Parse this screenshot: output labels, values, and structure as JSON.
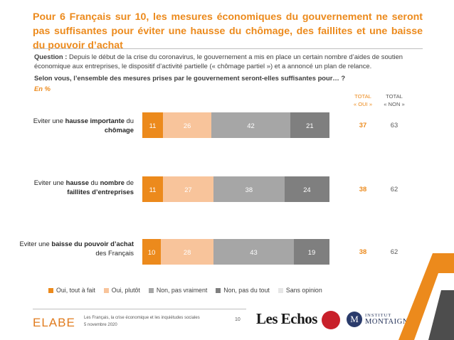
{
  "title": "Pour 6 Français sur 10, les mesures économiques du gouvernement ne seront pas suffisantes pour éviter une hausse du chômage, des faillites et une baisse du pouvoir d’achat",
  "question": {
    "prefix": "Question :",
    "text": "Depuis le début de la crise du coronavirus, le gouvernement a mis en place un certain nombre d’aides de soutien économique aux entreprises, le dispositif d’activité partielle (« chômage partiel ») et a annoncé un plan de relance.",
    "prompt": "Selon vous, l’ensemble des mesures prises par le gouvernement seront-elles suffisantes pour… ?",
    "unit": "En %"
  },
  "columns": {
    "oui_line1": "TOTAL",
    "oui_line2": "« OUI »",
    "non_line1": "TOTAL",
    "non_line2": "« NON »"
  },
  "rows": [
    {
      "label_parts": [
        {
          "text": "Eviter une ",
          "bold": false
        },
        {
          "text": "hausse importante",
          "bold": true
        },
        {
          "text": " du ",
          "bold": false
        },
        {
          "text": "chômage",
          "bold": true
        }
      ],
      "total_oui": "37",
      "total_non": "63"
    },
    {
      "label_parts": [
        {
          "text": "Eviter une ",
          "bold": false
        },
        {
          "text": "hausse",
          "bold": true
        },
        {
          "text": " du ",
          "bold": false
        },
        {
          "text": "nombre",
          "bold": true
        },
        {
          "text": " de ",
          "bold": false
        },
        {
          "text": "faillites d’entreprises",
          "bold": true
        }
      ],
      "total_oui": "38",
      "total_non": "62"
    },
    {
      "label_parts": [
        {
          "text": "Eviter une ",
          "bold": false
        },
        {
          "text": "baisse du pouvoir d’achat",
          "bold": true
        },
        {
          "text": " des Français",
          "bold": false
        }
      ],
      "total_oui": "38",
      "total_non": "62"
    }
  ],
  "legend": [
    {
      "label": "Oui, tout à fait",
      "color": "#ec8a1c"
    },
    {
      "label": "Oui, plutôt",
      "color": "#f8c49b"
    },
    {
      "label": "Non, pas vraiment",
      "color": "#a6a6a6"
    },
    {
      "label": "Non, pas du tout",
      "color": "#7f7f7f"
    },
    {
      "label": "Sans opinion",
      "color": "#e6e6e6"
    }
  ],
  "chart_data": {
    "type": "bar",
    "orientation": "horizontal",
    "stacked": true,
    "categories": [
      "Eviter une hausse importante du chômage",
      "Eviter une hausse du nombre de faillites d’entreprises",
      "Eviter une baisse du pouvoir d’achat des Français"
    ],
    "series": [
      {
        "name": "Oui, tout à fait",
        "values": [
          11,
          11,
          10
        ],
        "color": "#ec8a1c"
      },
      {
        "name": "Oui, plutôt",
        "values": [
          26,
          27,
          28
        ],
        "color": "#f8c49b"
      },
      {
        "name": "Non, pas vraiment",
        "values": [
          42,
          38,
          43
        ],
        "color": "#a6a6a6"
      },
      {
        "name": "Non, pas du tout",
        "values": [
          21,
          24,
          19
        ],
        "color": "#7f7f7f"
      },
      {
        "name": "Sans opinion",
        "values": [
          0,
          0,
          0
        ],
        "color": "#e6e6e6"
      }
    ],
    "xlim": [
      0,
      100
    ],
    "title": "",
    "xlabel": "",
    "ylabel": ""
  },
  "footer": {
    "brand": "ELABE",
    "line1": "Les Français, la crise économique et les inquiétudes sociales",
    "line2": "5 novembre 2020",
    "page": "10",
    "partner1": "Les Echos",
    "partner3_line1": "INSTITUT",
    "partner3_line2": "MONTAIGNE",
    "partner3_letter": "M"
  }
}
